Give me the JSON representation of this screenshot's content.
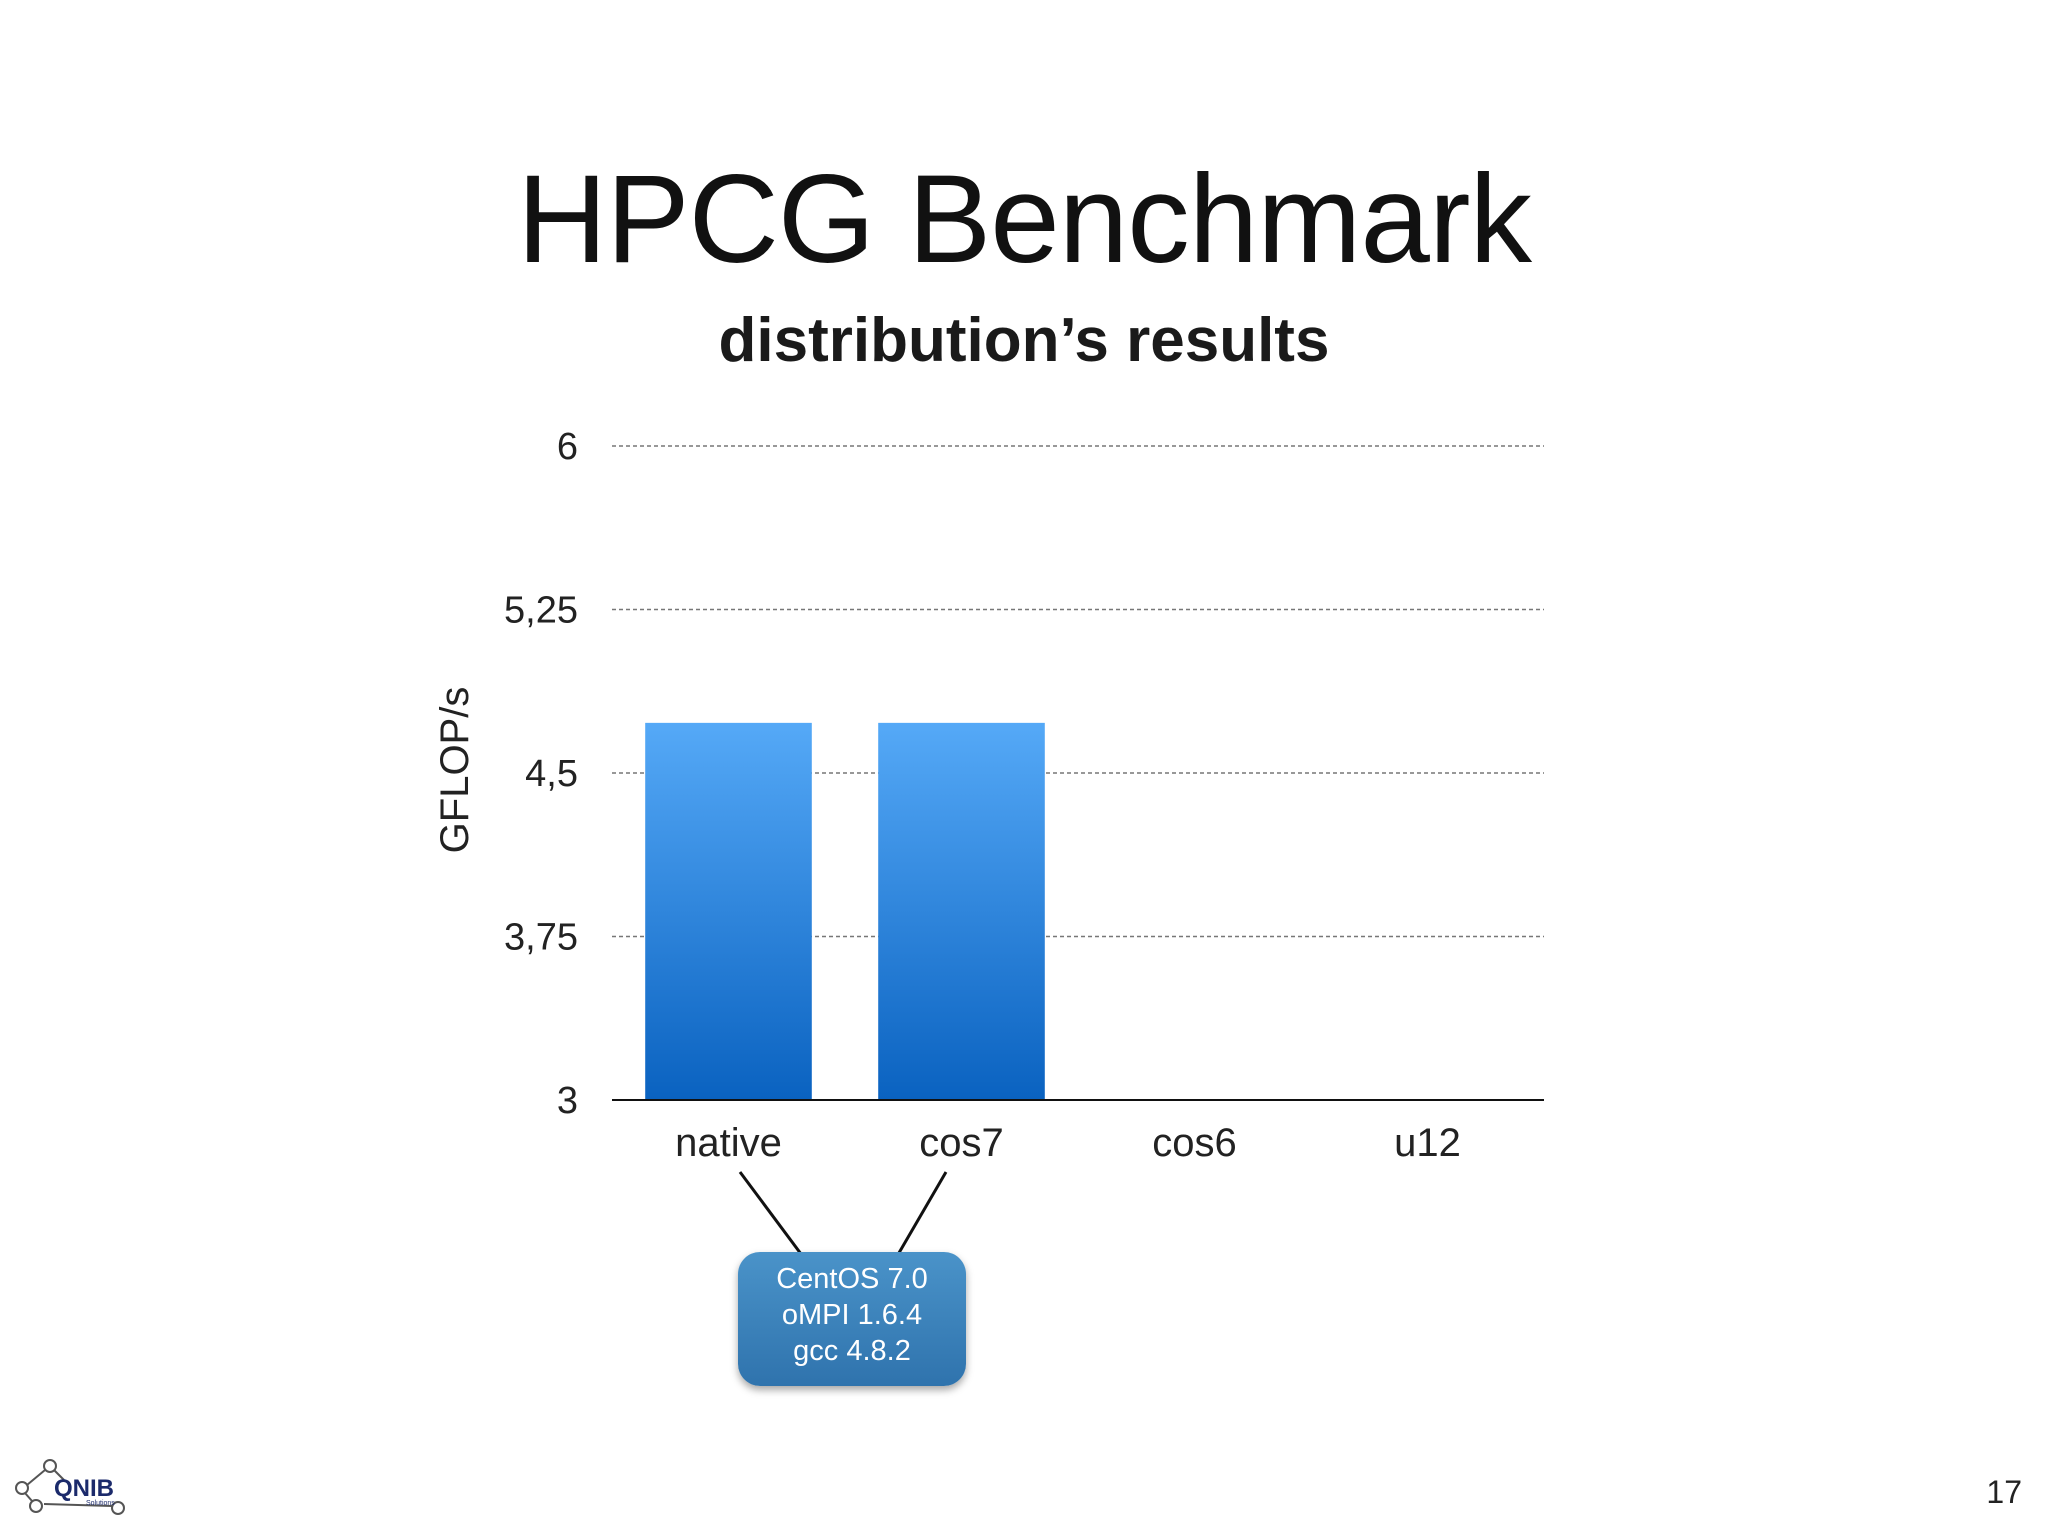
{
  "slide": {
    "title": "HPCG Benchmark",
    "subtitle": "distribution’s results",
    "page_number": "17",
    "logo_text": "QNIB",
    "logo_subtext": "Solutions"
  },
  "callout": {
    "lines": [
      "CentOS 7.0",
      "oMPI 1.6.4",
      "gcc 4.8.2"
    ],
    "targets": [
      "native",
      "cos7"
    ]
  },
  "chart_data": {
    "type": "bar",
    "title": "",
    "xlabel": "",
    "ylabel": "GFLOP/s",
    "categories": [
      "native",
      "cos7",
      "cos6",
      "u12"
    ],
    "values": [
      4.73,
      4.73,
      null,
      null
    ],
    "ylim": [
      3,
      6
    ],
    "yticks": [
      "3",
      "3,75",
      "4,5",
      "5,25",
      "6"
    ],
    "ytick_values": [
      3,
      3.75,
      4.5,
      5.25,
      6
    ],
    "grid": true,
    "bar_color_top": "#55a9f7",
    "bar_color_bottom": "#0a62c0"
  }
}
